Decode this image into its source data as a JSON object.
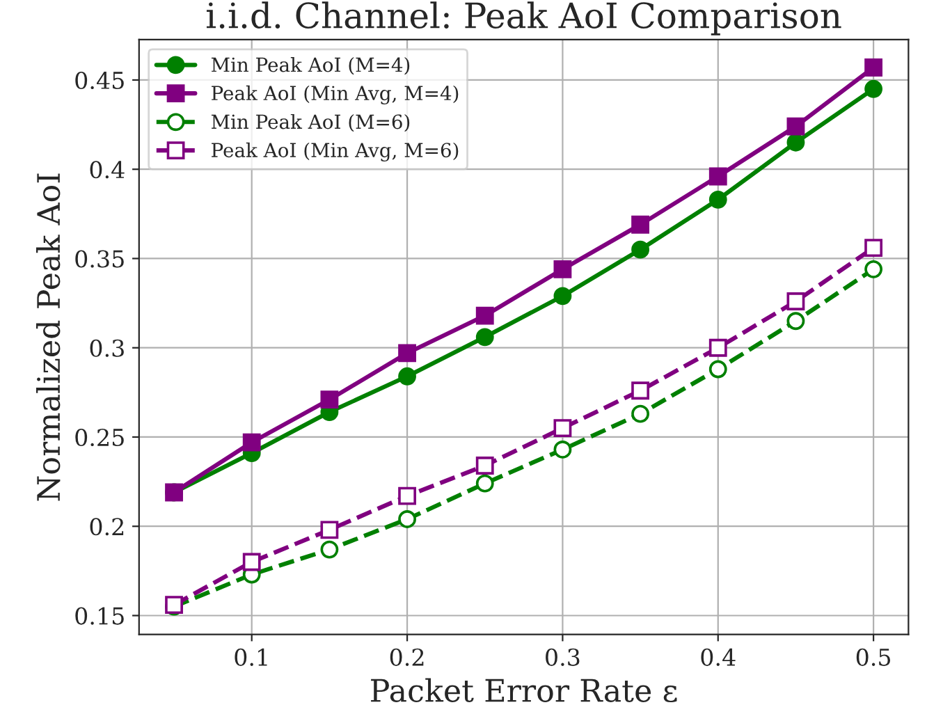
{
  "chart_data": {
    "type": "line",
    "title": "i.i.d. Channel: Peak AoI Comparison",
    "xlabel": "Packet Error Rate ε",
    "ylabel": "Normalized Peak AoI",
    "x": [
      0.05,
      0.1,
      0.15,
      0.2,
      0.25,
      0.3,
      0.35,
      0.4,
      0.45,
      0.5
    ],
    "series": [
      {
        "name": "Min Peak AoI (M=4)",
        "color": "#008000",
        "marker": "circle",
        "line_style": "solid",
        "values": [
          0.219,
          0.241,
          0.264,
          0.284,
          0.306,
          0.329,
          0.355,
          0.383,
          0.415,
          0.445
        ]
      },
      {
        "name": "Peak AoI (Min Avg, M=4)",
        "color": "#800080",
        "marker": "square",
        "line_style": "solid",
        "values": [
          0.219,
          0.247,
          0.271,
          0.297,
          0.318,
          0.344,
          0.369,
          0.396,
          0.424,
          0.457
        ]
      },
      {
        "name": "Min Peak AoI (M=6)",
        "color": "#008000",
        "marker": "circle",
        "line_style": "dashed",
        "values": [
          0.155,
          0.173,
          0.187,
          0.204,
          0.224,
          0.243,
          0.263,
          0.288,
          0.315,
          0.344
        ]
      },
      {
        "name": "Peak AoI (Min Avg, M=6)",
        "color": "#800080",
        "marker": "square",
        "line_style": "dashed",
        "values": [
          0.156,
          0.18,
          0.198,
          0.217,
          0.234,
          0.255,
          0.276,
          0.3,
          0.326,
          0.356
        ]
      }
    ],
    "xlim": [
      0.0275,
      0.5225
    ],
    "ylim": [
      0.1394,
      0.4726
    ],
    "xticks": [
      0.1,
      0.2,
      0.3,
      0.4,
      0.5
    ],
    "yticks": [
      0.15,
      0.2,
      0.25,
      0.3,
      0.35,
      0.4,
      0.45
    ],
    "grid": true,
    "legend": "top left"
  }
}
